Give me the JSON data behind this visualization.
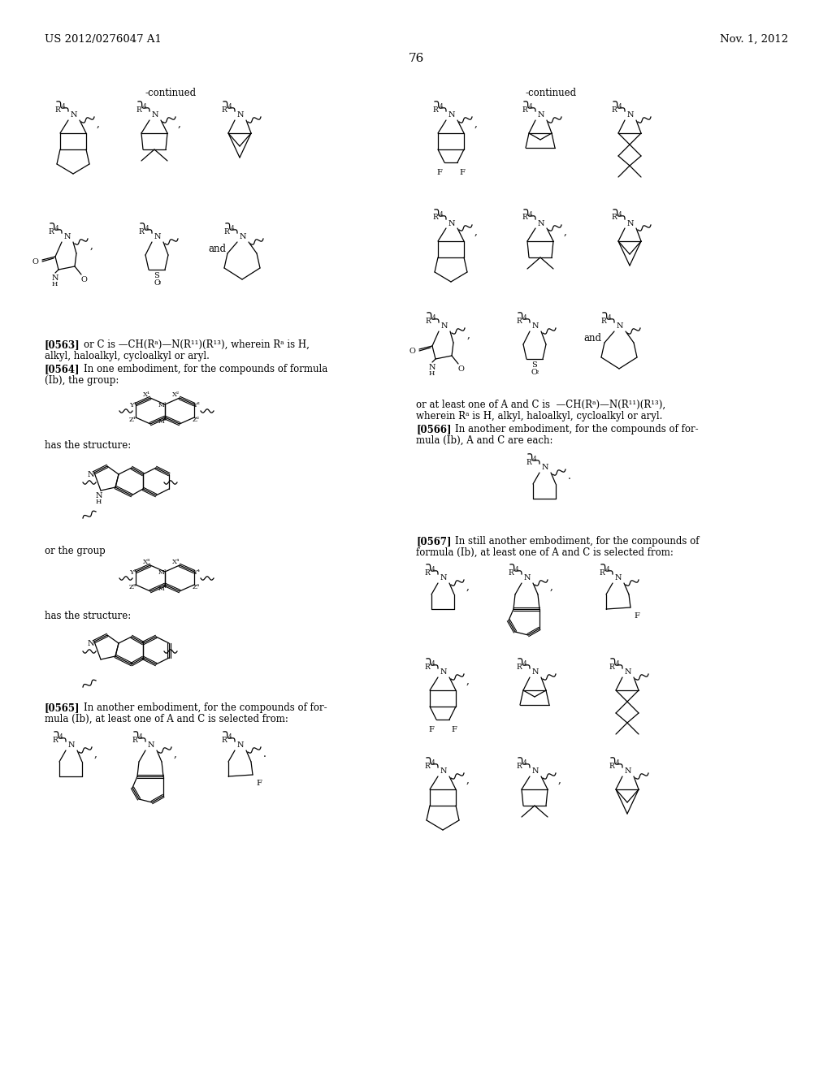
{
  "bg": "#ffffff",
  "header_left": "US 2012/0276047 A1",
  "header_right": "Nov. 1, 2012",
  "page_num": "76",
  "continued": "-continued",
  "p0563_bold": "[0563]",
  "p0563_text": "  or C is —CH(Rᵃ)—N(R¹¹)(R¹³), wherein Rᵃ is H,",
  "p0563_text2": "alkyl, haloalkyl, cycloalkyl or aryl.",
  "p0564_bold": "[0564]",
  "p0564_text": "   In one embodiment, for the compounds of formula",
  "p0564_text2": "(Ib), the group:",
  "has_struct1": "has the structure:",
  "or_group": "or the group",
  "has_struct2": "has the structure:",
  "p0565_bold": "[0565]",
  "p0565_text": "   In another embodiment, for the compounds of for-",
  "p0565_text2": "mula (Ib), at least one of A and C is selected from:",
  "p0565b_text1": "or at least one of A and C is  —CH(Rᵃ)—N(R¹¹)(R¹³),",
  "p0565b_text2": "wherein Rᵃ is H, alkyl, haloalkyl, cycloalkyl or aryl.",
  "p0566_bold": "[0566]",
  "p0566_text": "   In another embodiment, for the compounds of for-",
  "p0566_text2": "mula (Ib), A and C are each:",
  "p0567_bold": "[0567]",
  "p0567_text": "   In still another embodiment, for the compounds of",
  "p0567_text2": "formula (Ib), at least one of A and C is selected from:"
}
